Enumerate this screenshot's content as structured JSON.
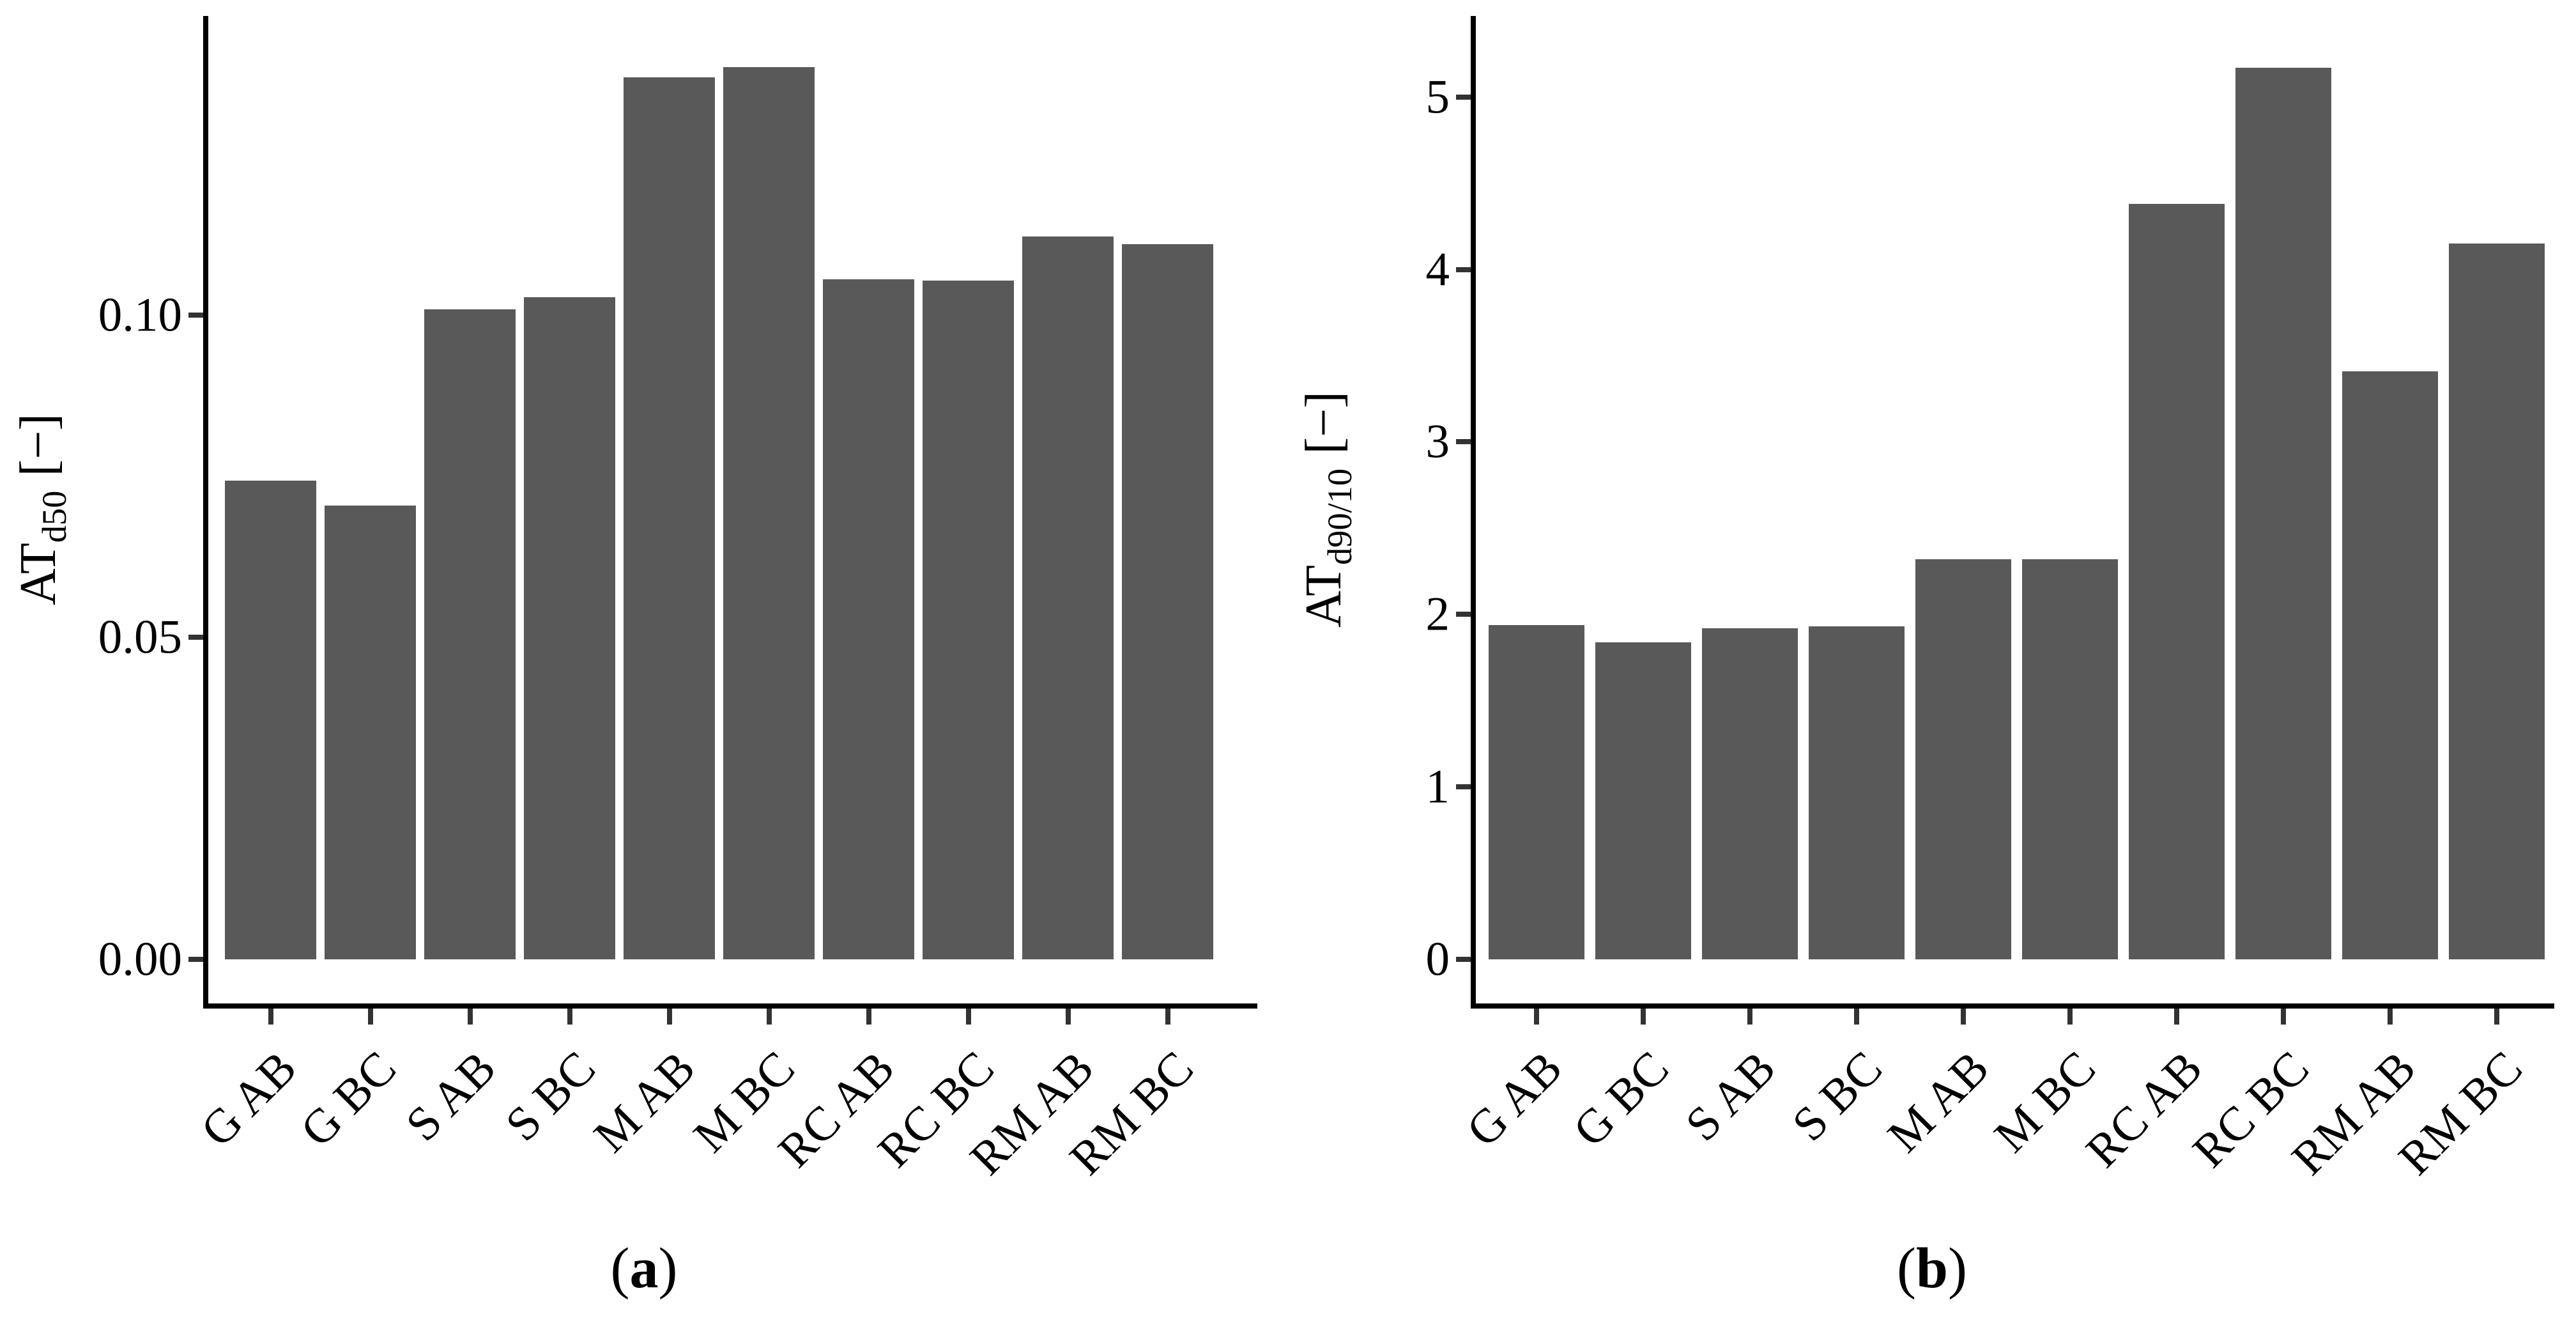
{
  "figure": {
    "background": "#ffffff",
    "panels": [
      {
        "caption_open": "(",
        "caption_letter": "a",
        "caption_close": ")"
      },
      {
        "caption_open": "(",
        "caption_letter": "b",
        "caption_close": ")"
      }
    ]
  },
  "chart_data": [
    {
      "type": "bar",
      "title": "",
      "categories": [
        "G AB",
        "G BC",
        "S AB",
        "S BC",
        "M AB",
        "M BC",
        "RC AB",
        "RC BC",
        "RM AB",
        "RM BC"
      ],
      "values": [
        0.0743,
        0.0705,
        0.1009,
        0.1028,
        0.137,
        0.1386,
        0.1056,
        0.1054,
        0.1123,
        0.1111
      ],
      "xlabel": "",
      "ylabel_main": "AT",
      "ylabel_sub": "d50",
      "ylabel_unit": "[−]",
      "yticks": [
        {
          "label": "0.00",
          "value": 0
        },
        {
          "label": "0.05",
          "value": 0.05
        },
        {
          "label": "0.10",
          "value": 0.1
        }
      ],
      "ylim": [
        0,
        0.1465
      ],
      "grid": false,
      "legend": null,
      "bar_color": "#595959",
      "axis_color": "#000000",
      "tick_color": "#333333"
    },
    {
      "type": "bar",
      "title": "",
      "categories": [
        "G AB",
        "G BC",
        "S AB",
        "S BC",
        "M AB",
        "M BC",
        "RC AB",
        "RC BC",
        "RM AB",
        "RM BC"
      ],
      "values": [
        1.94,
        1.84,
        1.92,
        1.93,
        2.32,
        2.32,
        4.38,
        5.17,
        3.41,
        4.15
      ],
      "xlabel": "",
      "ylabel_main": "AT",
      "ylabel_sub": "d90/10",
      "ylabel_unit": "[−]",
      "yticks": [
        {
          "label": "0",
          "value": 0
        },
        {
          "label": "1",
          "value": 1
        },
        {
          "label": "2",
          "value": 2
        },
        {
          "label": "3",
          "value": 3
        },
        {
          "label": "4",
          "value": 4
        },
        {
          "label": "5",
          "value": 5
        }
      ],
      "ylim": [
        0,
        5.47
      ],
      "grid": false,
      "legend": null,
      "bar_color": "#595959",
      "axis_color": "#000000",
      "tick_color": "#333333"
    }
  ]
}
